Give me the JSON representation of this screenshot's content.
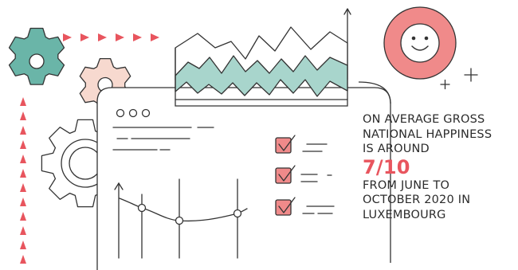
{
  "colors": {
    "outline": "#333333",
    "accent": "#e8555e",
    "teal": "#6ab5a8",
    "teal_light": "#a8d5cc",
    "peach": "#f7d9cf",
    "pink": "#f08a8a",
    "white": "#ffffff"
  },
  "icons": [
    "gear-icon",
    "smiley-icon",
    "sparkle-icon",
    "checkbox-checked-icon",
    "arrow-up-icon"
  ],
  "caption": {
    "line1": "ON AVERAGE GROSS",
    "line2": "NATIONAL HAPPINESS",
    "line3": "IS AROUND",
    "score": "7/10",
    "line4": "FROM JUNE TO",
    "line5": "OCTOBER 2020 IN",
    "line6": "LUXEMBOURG"
  }
}
